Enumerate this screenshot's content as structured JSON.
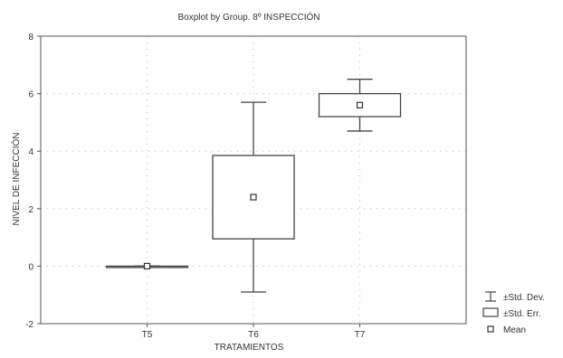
{
  "chart_data": {
    "type": "boxplot",
    "title": "Boxplot by Group. 8º INSPECCIÓN",
    "xlabel": "TRATAMIENTOS",
    "ylabel": "NIVEL DE INFECCIÓN",
    "ylim": [
      -2,
      8
    ],
    "yticks": [
      "-2",
      "0",
      "2",
      "4",
      "6",
      "8"
    ],
    "grid": "dotted",
    "legend_position": "bottom-right",
    "categories": [
      "T5",
      "T6",
      "T7"
    ],
    "groups": [
      {
        "name": "T5",
        "mean": 0.0,
        "se_low": 0.0,
        "se_high": 0.0,
        "sd_low": 0.0,
        "sd_high": 0.0
      },
      {
        "name": "T6",
        "mean": 2.4,
        "se_low": 0.95,
        "se_high": 3.85,
        "sd_low": -0.9,
        "sd_high": 5.7
      },
      {
        "name": "T7",
        "mean": 5.6,
        "se_low": 5.2,
        "se_high": 6.0,
        "sd_low": 4.7,
        "sd_high": 6.5
      }
    ],
    "legend": [
      {
        "label": "±Std. Dev.",
        "symbol": "whisker"
      },
      {
        "label": "±Std. Err.",
        "symbol": "box"
      },
      {
        "label": "Mean",
        "symbol": "square"
      }
    ]
  }
}
